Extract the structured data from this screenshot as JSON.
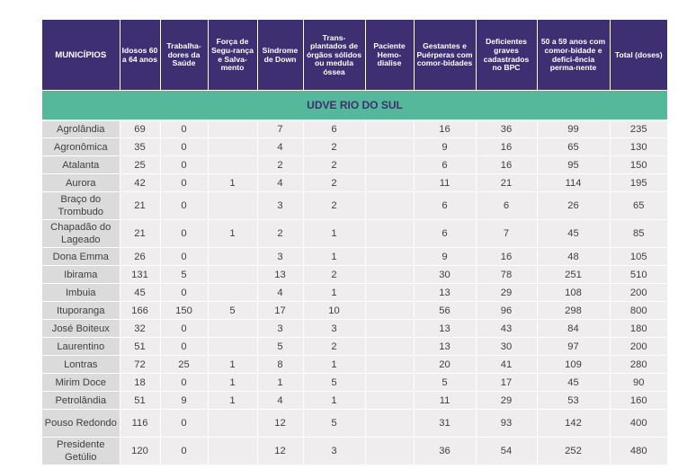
{
  "headers": [
    "MUNICÍPIOS",
    "Idosos 60 a 64 anos",
    "Trabalha-dores da Saúde",
    "Força de Segu-rança e Salva-mento",
    "Síndrome de Down",
    "Trans-plantados de órgãos sólidos ou medula óssea",
    "Paciente Hemo-dialise",
    "Gestantes e Puérperas com comor-bidades",
    "Deficientes graves cadastrados no BPC",
    "50 a 59 anos com comor-bidade e defici-ência perma-nente",
    "Total (doses)"
  ],
  "region": "UDVE RIO DO SUL",
  "rows": [
    [
      "Agrolândia",
      "69",
      "0",
      "",
      "7",
      "6",
      "",
      "16",
      "36",
      "99",
      "235"
    ],
    [
      "Agronômica",
      "35",
      "0",
      "",
      "4",
      "2",
      "",
      "9",
      "16",
      "65",
      "130"
    ],
    [
      "Atalanta",
      "25",
      "0",
      "",
      "2",
      "2",
      "",
      "6",
      "16",
      "95",
      "150"
    ],
    [
      "Aurora",
      "42",
      "0",
      "1",
      "4",
      "2",
      "",
      "11",
      "21",
      "114",
      "195"
    ],
    [
      "Braço do Trombudo",
      "21",
      "0",
      "",
      "3",
      "2",
      "",
      "6",
      "6",
      "26",
      "65"
    ],
    [
      "Chapadão do Lageado",
      "21",
      "0",
      "1",
      "2",
      "1",
      "",
      "6",
      "7",
      "45",
      "85"
    ],
    [
      "Dona Emma",
      "26",
      "0",
      "",
      "3",
      "1",
      "",
      "9",
      "16",
      "48",
      "105"
    ],
    [
      "Ibirama",
      "131",
      "5",
      "",
      "13",
      "2",
      "",
      "30",
      "78",
      "251",
      "510"
    ],
    [
      "Imbuia",
      "45",
      "0",
      "",
      "4",
      "1",
      "",
      "13",
      "29",
      "108",
      "200"
    ],
    [
      "Ituporanga",
      "166",
      "150",
      "5",
      "17",
      "10",
      "",
      "56",
      "96",
      "298",
      "800"
    ],
    [
      "José Boiteux",
      "32",
      "0",
      "",
      "3",
      "3",
      "",
      "13",
      "43",
      "84",
      "180"
    ],
    [
      "Laurentino",
      "51",
      "0",
      "",
      "5",
      "2",
      "",
      "13",
      "30",
      "97",
      "200"
    ],
    [
      "Lontras",
      "72",
      "25",
      "1",
      "8",
      "1",
      "",
      "20",
      "41",
      "109",
      "280"
    ],
    [
      "Mirim Doce",
      "18",
      "0",
      "1",
      "1",
      "5",
      "",
      "5",
      "17",
      "45",
      "90"
    ],
    [
      "Petrolândia",
      "51",
      "9",
      "1",
      "4",
      "1",
      "",
      "11",
      "29",
      "53",
      "160"
    ],
    [
      "Pouso Redondo",
      "116",
      "0",
      "",
      "12",
      "5",
      "",
      "31",
      "93",
      "142",
      "400"
    ],
    [
      "Presidente Getúlio",
      "120",
      "0",
      "",
      "12",
      "3",
      "",
      "36",
      "54",
      "252",
      "480"
    ]
  ]
}
